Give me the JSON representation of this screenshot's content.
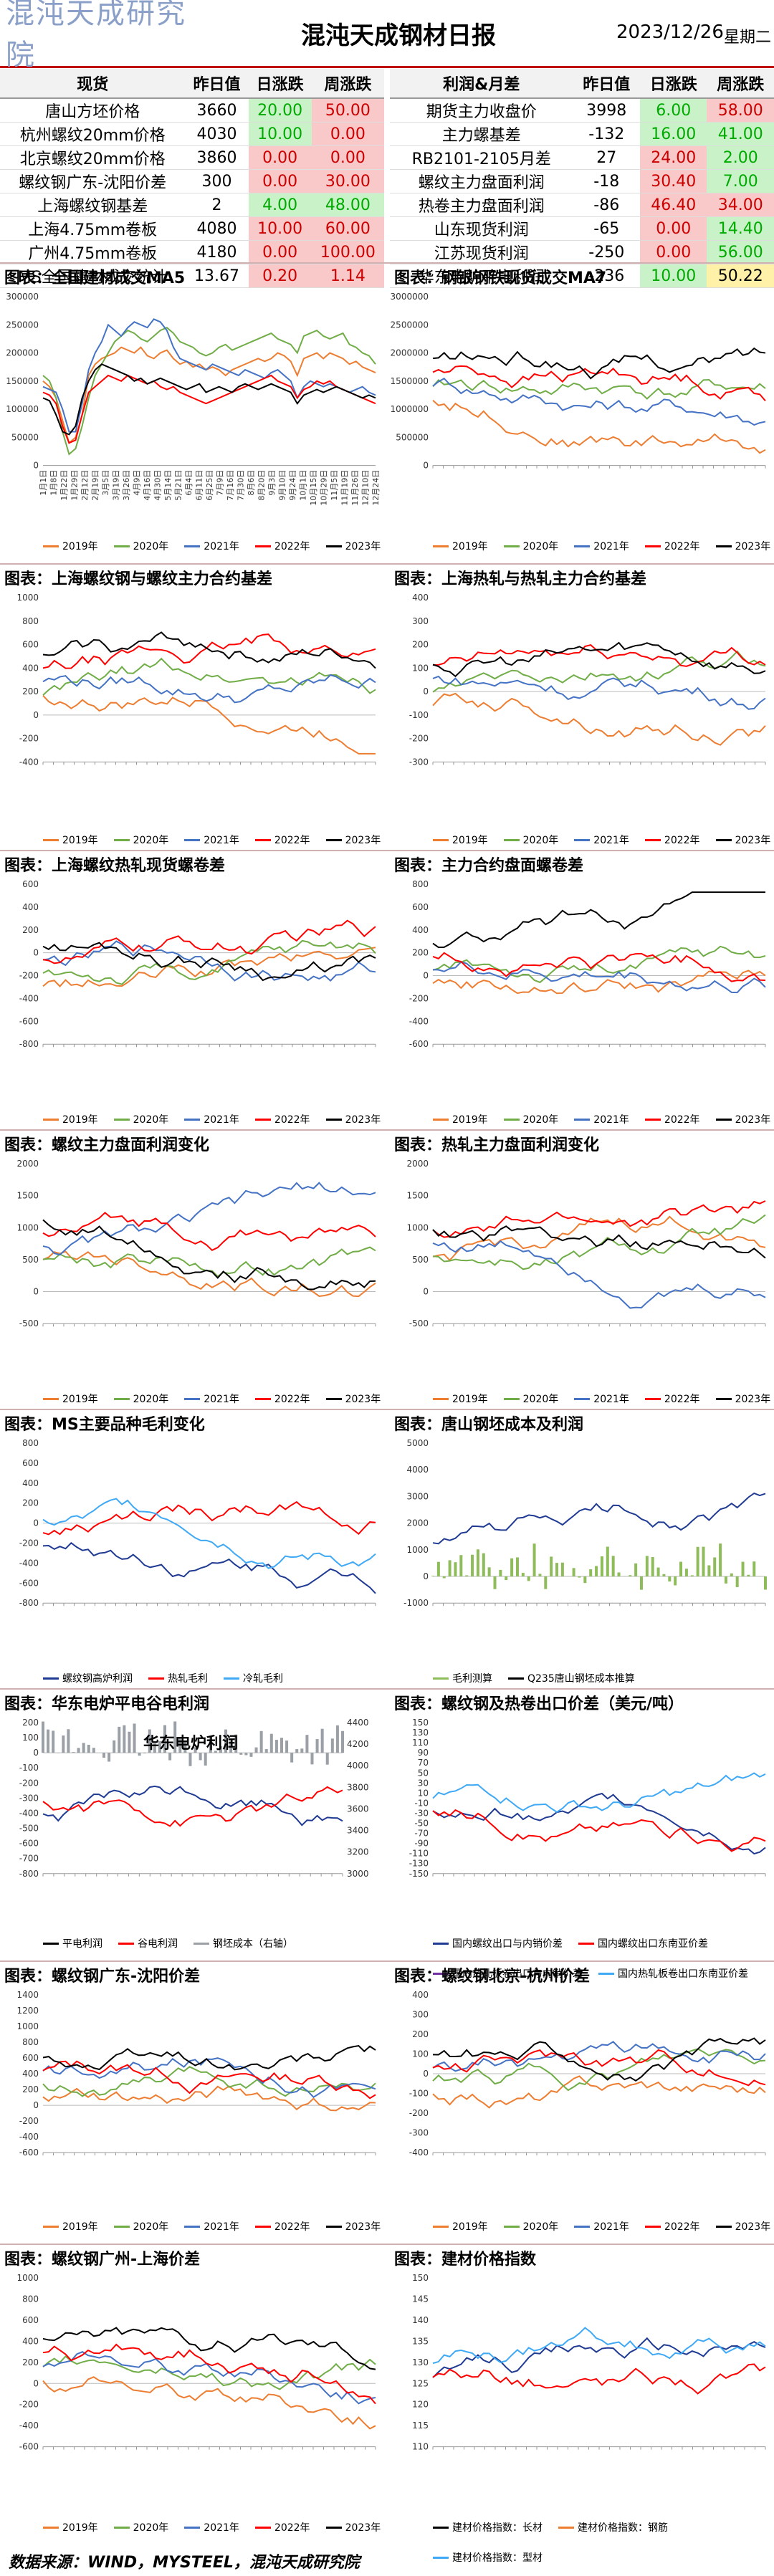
{
  "header": {
    "logo": "混沌天成研究院",
    "title": "混沌天成钢材日报",
    "date": "2023/12/26",
    "weekday": "星期二"
  },
  "spot_table": {
    "headers": [
      "现货",
      "昨日值",
      "日涨跌",
      "周涨跌"
    ],
    "rows": [
      {
        "name": "唐山方坯价格",
        "value": "3660",
        "day": "20.00",
        "week": "50.00",
        "dc": "g",
        "wc": "r"
      },
      {
        "name": "杭州螺纹20mm价格",
        "value": "4030",
        "day": "10.00",
        "week": "0.00",
        "dc": "g",
        "wc": "r"
      },
      {
        "name": "北京螺纹20mm价格",
        "value": "3860",
        "day": "0.00",
        "week": "0.00",
        "dc": "r",
        "wc": "r"
      },
      {
        "name": "螺纹钢广东-沈阳价差",
        "value": "300",
        "day": "0.00",
        "week": "30.00",
        "dc": "r",
        "wc": "r"
      },
      {
        "name": "上海螺纹钢基差",
        "value": "2",
        "day": "4.00",
        "week": "48.00",
        "dc": "g",
        "wc": "g"
      },
      {
        "name": "上海4.75mm卷板",
        "value": "4080",
        "day": "10.00",
        "week": "60.00",
        "dc": "r",
        "wc": "r"
      },
      {
        "name": "广州4.75mm卷板",
        "value": "4180",
        "day": "0.00",
        "week": "100.00",
        "dc": "r",
        "wc": "r"
      },
      {
        "name": "MS全国建材成交统计",
        "value": "13.67",
        "day": "0.20",
        "week": "1.14",
        "dc": "r",
        "wc": "r"
      }
    ]
  },
  "profit_table": {
    "headers": [
      "利润&月差",
      "昨日值",
      "日涨跌",
      "周涨跌"
    ],
    "rows": [
      {
        "name": "期货主力收盘价",
        "value": "3998",
        "day": "6.00",
        "week": "58.00",
        "dc": "g",
        "wc": "r"
      },
      {
        "name": "主力螺基差",
        "value": "-132",
        "day": "16.00",
        "week": "41.00",
        "dc": "g",
        "wc": "g"
      },
      {
        "name": "RB2101-2105月差",
        "value": "27",
        "day": "24.00",
        "week": "2.00",
        "dc": "r",
        "wc": "g"
      },
      {
        "name": "螺纹主力盘面利润",
        "value": "-18",
        "day": "30.40",
        "week": "7.00",
        "dc": "r",
        "wc": "g"
      },
      {
        "name": "热卷主力盘面利润",
        "value": "-86",
        "day": "46.40",
        "week": "34.00",
        "dc": "r",
        "wc": "r"
      },
      {
        "name": "山东现货利润",
        "value": "-65",
        "day": "0.00",
        "week": "14.40",
        "dc": "r",
        "wc": "g"
      },
      {
        "name": "江苏现货利润",
        "value": "-250",
        "day": "0.00",
        "week": "56.00",
        "dc": "r",
        "wc": "g"
      },
      {
        "name": "华东电炉平电利润",
        "value": "-236",
        "day": "10.00",
        "week": "50.22",
        "dc": "g",
        "wc": "y"
      }
    ]
  },
  "charts": [
    {
      "title": "图表：全国建材成交MA5"
    },
    {
      "title": "图表：钢银钢铁现货成交MA7"
    },
    {
      "title": "图表：上海螺纹钢与螺纹主力合约基差"
    },
    {
      "title": "图表：上海热轧与热轧主力合约基差"
    },
    {
      "title": "图表：上海螺纹热轧现货螺卷差"
    },
    {
      "title": "图表：主力合约盘面螺卷差"
    },
    {
      "title": "图表：螺纹主力盘面利润变化"
    },
    {
      "title": "图表：热轧主力盘面利润变化"
    },
    {
      "title": "图表：MS主要品种毛利变化"
    },
    {
      "title": "图表：唐山钢坯成本及利润"
    },
    {
      "title": "图表：华东电炉平电谷电利润"
    },
    {
      "title": "图表：螺纹钢及热卷出口价差（美元/吨）"
    },
    {
      "title": "图表：螺纹钢广东-沈阳价差"
    },
    {
      "title": "图表：螺纹钢北京-杭州价差"
    },
    {
      "title": "图表：螺纹钢广州-上海价差"
    },
    {
      "title": "图表：建材价格指数"
    }
  ],
  "legend_years": [
    "2019年",
    "2020年",
    "2021年",
    "2022年",
    "2023年"
  ],
  "legend_colors": [
    "#ed7d31",
    "#70ad47",
    "#4472c4",
    "#ff0000",
    "#000000"
  ],
  "legend_ms": [
    "螺纹钢高炉利润",
    "热轧毛利",
    "冷轧毛利"
  ],
  "legend_ts": [
    "毛利测算",
    "Q235唐山钢坯成本推算"
  ],
  "legend_hd": [
    "平电利润",
    "谷电利润",
    "钢坯成本（右轴）"
  ],
  "legend_export": [
    "国内螺纹出口与内销价差",
    "国内螺纹出口东南亚价差",
    "国内热轧板卷出口与内销价差",
    "国内热轧板卷出口东南亚价差"
  ],
  "legend_index": [
    "建材价格指数：长材",
    "建材价格指数：钢筋",
    "建材价格指数：型材"
  ],
  "hd_inner_title": "华东电炉利润",
  "footer": "数据来源：WIND，MYSTEEL，混沌天成研究院",
  "chart_data": [
    {
      "type": "line",
      "title": "图表：全国建材成交MA5",
      "ylim": [
        0,
        300000
      ],
      "yticks": [
        "300000",
        "250000",
        "200000",
        "150000",
        "100000",
        "50000",
        "0"
      ],
      "x": [
        "1月1日",
        "1月8日",
        "1月15日",
        "1月22日",
        "1月29日",
        "2月5日",
        "2月12日",
        "2月19日",
        "2月26日",
        "3月5日",
        "3月12日",
        "3月19日",
        "3月26日",
        "4月2日",
        "4月9日",
        "4月16日",
        "4月23日",
        "4月30日",
        "5月7日",
        "5月14日",
        "5月21日",
        "5月28日",
        "6月4日",
        "6月11日",
        "6月18日",
        "6月25日",
        "7月2日",
        "7月9日",
        "7月16日",
        "7月23日",
        "7月30日",
        "8月6日",
        "8月13日",
        "8月20日",
        "8月27日",
        "9月3日",
        "9月10日",
        "9月17日",
        "9月24日",
        "10月1日",
        "10月8日",
        "10月15日",
        "10月22日",
        "10月29日",
        "11月5日",
        "11月12日",
        "11月19日",
        "11月26日",
        "12月3日",
        "12月10日",
        "12月17日",
        "12月24日"
      ],
      "series": [
        {
          "name": "2019年",
          "values": [
            150000,
            140000,
            120000,
            80000,
            40000,
            50000,
            90000,
            160000,
            180000,
            190000,
            195000,
            200000,
            210000,
            205000,
            200000,
            210000,
            195000,
            190000,
            200000,
            205000,
            190000,
            180000,
            185000,
            175000,
            180000,
            170000,
            175000,
            170000,
            160000,
            170000,
            175000,
            180000,
            185000,
            190000,
            185000,
            190000,
            200000,
            195000,
            185000,
            160000,
            190000,
            195000,
            200000,
            190000,
            200000,
            195000,
            190000,
            180000,
            185000,
            175000,
            170000,
            165000
          ]
        },
        {
          "name": "2020年",
          "values": [
            160000,
            150000,
            120000,
            60000,
            20000,
            30000,
            70000,
            120000,
            160000,
            180000,
            200000,
            220000,
            230000,
            240000,
            235000,
            225000,
            220000,
            230000,
            240000,
            245000,
            235000,
            220000,
            215000,
            210000,
            200000,
            195000,
            200000,
            210000,
            215000,
            205000,
            210000,
            215000,
            220000,
            225000,
            230000,
            235000,
            225000,
            220000,
            215000,
            200000,
            230000,
            235000,
            240000,
            230000,
            225000,
            230000,
            235000,
            215000,
            210000,
            200000,
            195000,
            180000
          ]
        },
        {
          "name": "2021年",
          "values": [
            140000,
            135000,
            130000,
            100000,
            60000,
            60000,
            110000,
            170000,
            200000,
            220000,
            250000,
            240000,
            230000,
            245000,
            255000,
            250000,
            245000,
            260000,
            255000,
            240000,
            210000,
            190000,
            185000,
            180000,
            175000,
            170000,
            180000,
            175000,
            170000,
            165000,
            160000,
            170000,
            165000,
            160000,
            155000,
            165000,
            170000,
            160000,
            150000,
            120000,
            140000,
            150000,
            145000,
            140000,
            145000,
            140000,
            135000,
            130000,
            135000,
            140000,
            130000,
            125000
          ]
        },
        {
          "name": "2022年",
          "values": [
            130000,
            125000,
            110000,
            70000,
            40000,
            45000,
            90000,
            130000,
            140000,
            150000,
            160000,
            155000,
            150000,
            160000,
            155000,
            150000,
            145000,
            150000,
            140000,
            135000,
            140000,
            130000,
            125000,
            120000,
            115000,
            110000,
            115000,
            120000,
            125000,
            130000,
            135000,
            140000,
            145000,
            150000,
            155000,
            160000,
            150000,
            145000,
            140000,
            120000,
            135000,
            140000,
            150000,
            145000,
            150000,
            140000,
            135000,
            130000,
            125000,
            120000,
            115000,
            110000
          ]
        },
        {
          "name": "2023年",
          "values": [
            120000,
            115000,
            90000,
            60000,
            55000,
            70000,
            120000,
            150000,
            170000,
            180000,
            175000,
            170000,
            165000,
            160000,
            150000,
            155000,
            145000,
            150000,
            155000,
            150000,
            145000,
            140000,
            135000,
            140000,
            145000,
            130000,
            135000,
            140000,
            135000,
            130000,
            140000,
            145000,
            140000,
            135000,
            140000,
            145000,
            140000,
            135000,
            130000,
            110000,
            125000,
            130000,
            135000,
            130000,
            135000,
            140000,
            135000,
            130000,
            125000,
            120000,
            125000,
            120000
          ]
        }
      ]
    },
    {
      "type": "line",
      "title": "图表：钢银钢铁现货成交MA7",
      "ylim": [
        0,
        3000000
      ],
      "yticks": [
        "3000000",
        "2500000",
        "2000000",
        "1500000",
        "1000000",
        "500000",
        "0"
      ],
      "note": "approximate shape"
    },
    {
      "type": "line",
      "title": "图表：上海螺纹钢与螺纹主力合约基差",
      "ylim": [
        -400,
        1000
      ],
      "yticks": [
        "1000",
        "800",
        "600",
        "400",
        "200",
        "0",
        "-200",
        "-400"
      ]
    },
    {
      "type": "line",
      "title": "图表：上海热轧与热轧主力合约基差",
      "ylim": [
        -300,
        400
      ],
      "yticks": [
        "400",
        "300",
        "200",
        "100",
        "0",
        "-100",
        "-200",
        "-300"
      ]
    },
    {
      "type": "line",
      "title": "图表：上海螺纹热轧现货螺卷差",
      "ylim": [
        -800,
        600
      ],
      "yticks": [
        "600",
        "400",
        "200",
        "0",
        "-200",
        "-400",
        "-600",
        "-800"
      ]
    },
    {
      "type": "line",
      "title": "图表：主力合约盘面螺卷差",
      "ylim": [
        -600,
        800
      ],
      "yticks": [
        "800",
        "600",
        "400",
        "200",
        "0",
        "-200",
        "-400",
        "-600"
      ]
    },
    {
      "type": "line",
      "title": "图表：螺纹主力盘面利润变化",
      "ylim": [
        -500,
        2000
      ],
      "yticks": [
        "2000",
        "1500",
        "1000",
        "500",
        "0",
        "-500"
      ]
    },
    {
      "type": "line",
      "title": "图表：热轧主力盘面利润变化",
      "ylim": [
        -500,
        2000
      ],
      "yticks": [
        "2000",
        "1500",
        "1000",
        "500",
        "0",
        "-500"
      ]
    },
    {
      "type": "line",
      "title": "图表：MS主要品种毛利变化",
      "ylim": [
        -800,
        800
      ],
      "yticks": [
        "800",
        "600",
        "400",
        "200",
        "0",
        "-200",
        "-400",
        "-600",
        "-800"
      ]
    },
    {
      "type": "line",
      "title": "图表：唐山钢坯成本及利润",
      "ylim": [
        -1000,
        5000
      ],
      "yticks": [
        "5000",
        "4000",
        "3000",
        "2000",
        "1000",
        "0",
        "-1000"
      ]
    },
    {
      "type": "line",
      "title": "图表：华东电炉平电谷电利润",
      "ylim": [
        -800,
        200
      ],
      "yticks": [
        "200",
        "100",
        "0",
        "-100",
        "-200",
        "-300",
        "-400",
        "-500",
        "-600",
        "-700",
        "-800"
      ],
      "y2ticks": [
        "4400",
        "4200",
        "4000",
        "3800",
        "3600",
        "3400",
        "3200",
        "3000"
      ]
    },
    {
      "type": "line",
      "title": "图表：螺纹钢及热卷出口价差（美元/吨）",
      "ylim": [
        -150,
        150
      ],
      "yticks": [
        "150",
        "130",
        "110",
        "90",
        "70",
        "50",
        "30",
        "10",
        "-10",
        "-30",
        "-50",
        "-70",
        "-90",
        "-110",
        "-130",
        "-150"
      ]
    },
    {
      "type": "line",
      "title": "图表：螺纹钢广东-沈阳价差",
      "ylim": [
        -600,
        1400
      ],
      "yticks": [
        "1400",
        "1200",
        "1000",
        "800",
        "600",
        "400",
        "200",
        "0",
        "-200",
        "-400",
        "-600"
      ]
    },
    {
      "type": "line",
      "title": "图表：螺纹钢北京-杭州价差",
      "ylim": [
        -400,
        400
      ],
      "yticks": [
        "400",
        "300",
        "200",
        "100",
        "0",
        "-100",
        "-200",
        "-300",
        "-400"
      ]
    },
    {
      "type": "line",
      "title": "图表：螺纹钢广州-上海价差",
      "ylim": [
        -600,
        1000
      ],
      "yticks": [
        "1000",
        "800",
        "600",
        "400",
        "200",
        "0",
        "-200",
        "-400",
        "-600"
      ]
    },
    {
      "type": "line",
      "title": "图表：建材价格指数",
      "ylim": [
        110,
        150
      ],
      "yticks": [
        "150",
        "145",
        "140",
        "135",
        "130",
        "125",
        "120",
        "115",
        "110"
      ]
    }
  ]
}
